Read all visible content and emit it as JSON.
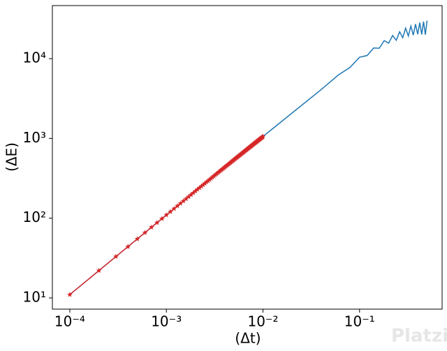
{
  "chart_data": {
    "type": "line",
    "xlabel": "(Δt)",
    "ylabel": "(ΔE)",
    "xscale": "log",
    "yscale": "log",
    "xlim": [
      6.6e-05,
      0.716
    ],
    "ylim": [
      7.24,
      46250
    ],
    "xticks": [
      {
        "value": 0.0001,
        "label": "10⁻⁴"
      },
      {
        "value": 0.001,
        "label": "10⁻³"
      },
      {
        "value": 0.01,
        "label": "10⁻²"
      },
      {
        "value": 0.1,
        "label": "10⁻¹"
      }
    ],
    "yticks": [
      {
        "value": 10,
        "label": "10¹"
      },
      {
        "value": 100,
        "label": "10²"
      },
      {
        "value": 1000,
        "label": "10³"
      },
      {
        "value": 10000,
        "label": "10⁴"
      }
    ],
    "series": [
      {
        "color": "#1f77b4",
        "x": [
          0.0001,
          0.001,
          0.01,
          0.02,
          0.04,
          0.06,
          0.08,
          0.1,
          0.12,
          0.14,
          0.16,
          0.18,
          0.2,
          0.22,
          0.24,
          0.26,
          0.28,
          0.3,
          0.32,
          0.34,
          0.36,
          0.38,
          0.4,
          0.42,
          0.44,
          0.46,
          0.48,
          0.5
        ],
        "values": [
          11,
          110,
          1056,
          2080,
          4090,
          6200,
          7800,
          10400,
          10950,
          13600,
          13500,
          16800,
          15600,
          19500,
          17000,
          21700,
          18300,
          24100,
          19200,
          25600,
          19700,
          27100,
          20200,
          28300,
          20100,
          29100,
          20000,
          30000
        ]
      },
      {
        "color": "#d62728",
        "marker": "star",
        "x": [
          0.0001,
          0.0002,
          0.0003,
          0.0004,
          0.0005,
          0.0006,
          0.0007,
          0.0008,
          0.0009,
          0.001,
          0.0011,
          0.0012,
          0.0013,
          0.0014,
          0.0015,
          0.0016,
          0.0017,
          0.0018,
          0.0019,
          0.002,
          0.0021,
          0.0022,
          0.0023,
          0.0024,
          0.0025,
          0.0026,
          0.0027,
          0.0028,
          0.0029,
          0.003,
          0.0031,
          0.0032,
          0.0033,
          0.0034,
          0.0035,
          0.0036,
          0.0037,
          0.0038,
          0.0039,
          0.004,
          0.0041,
          0.0042,
          0.0043,
          0.0044,
          0.0045,
          0.0046,
          0.0047,
          0.0048,
          0.0049,
          0.005,
          0.0051,
          0.0052,
          0.0053,
          0.0054,
          0.0055,
          0.0056,
          0.0057,
          0.0058,
          0.0059,
          0.006,
          0.0061,
          0.0062,
          0.0063,
          0.0064,
          0.0065,
          0.0066,
          0.0067,
          0.0068,
          0.0069,
          0.007,
          0.0071,
          0.0072,
          0.0073,
          0.0074,
          0.0075,
          0.0076,
          0.0077,
          0.0078,
          0.0079,
          0.008,
          0.0081,
          0.0082,
          0.0083,
          0.0084,
          0.0085,
          0.0086,
          0.0087,
          0.0088,
          0.0089,
          0.009,
          0.0091,
          0.0092,
          0.0093,
          0.0094,
          0.0095,
          0.0096,
          0.0097,
          0.0098,
          0.0099,
          0.01
        ],
        "values": [
          11.0,
          22.0,
          33.0,
          43.9,
          54.9,
          65.8,
          76.8,
          87.7,
          98.6,
          109.6,
          120.5,
          131.4,
          142.3,
          153.1,
          164.0,
          174.9,
          185.7,
          196.6,
          207.4,
          218.2,
          229.1,
          239.9,
          250.7,
          261.5,
          272.3,
          283.0,
          293.8,
          304.6,
          315.3,
          326.0,
          336.8,
          347.5,
          358.2,
          368.9,
          379.6,
          390.3,
          401.0,
          411.6,
          422.3,
          433.0,
          443.6,
          454.2,
          464.9,
          475.5,
          486.1,
          496.7,
          507.3,
          517.9,
          528.4,
          539.0,
          549.6,
          560.1,
          570.6,
          581.2,
          591.7,
          602.2,
          612.7,
          623.2,
          633.7,
          644.2,
          654.6,
          665.1,
          675.5,
          686.0,
          696.4,
          706.8,
          717.2,
          727.7,
          738.1,
          748.4,
          758.8,
          769.2,
          779.6,
          789.9,
          800.3,
          810.6,
          820.9,
          831.2,
          841.5,
          851.8,
          862.1,
          872.4,
          882.7,
          893.0,
          903.2,
          913.5,
          923.7,
          933.9,
          944.1,
          954.4,
          964.6,
          974.8,
          984.9,
          995.1,
          1005.3,
          1015.4,
          1025.6,
          1035.7,
          1045.9,
          1056.0
        ]
      }
    ],
    "watermark": "Platzi"
  }
}
